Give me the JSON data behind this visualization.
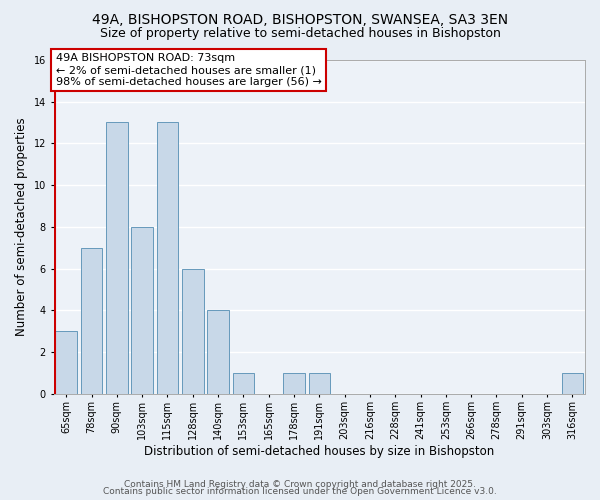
{
  "title": "49A, BISHOPSTON ROAD, BISHOPSTON, SWANSEA, SA3 3EN",
  "subtitle": "Size of property relative to semi-detached houses in Bishopston",
  "xlabel": "Distribution of semi-detached houses by size in Bishopston",
  "ylabel": "Number of semi-detached properties",
  "categories": [
    "65sqm",
    "78sqm",
    "90sqm",
    "103sqm",
    "115sqm",
    "128sqm",
    "140sqm",
    "153sqm",
    "165sqm",
    "178sqm",
    "191sqm",
    "203sqm",
    "216sqm",
    "228sqm",
    "241sqm",
    "253sqm",
    "266sqm",
    "278sqm",
    "291sqm",
    "303sqm",
    "316sqm"
  ],
  "values": [
    3,
    7,
    13,
    8,
    13,
    6,
    4,
    1,
    0,
    1,
    1,
    0,
    0,
    0,
    0,
    0,
    0,
    0,
    0,
    0,
    1
  ],
  "bar_color": "#c8d8e8",
  "bar_edge_color": "#6699bb",
  "highlight_bar_index": 0,
  "highlight_edge_color": "#cc0000",
  "vline_color": "#cc0000",
  "ylim": [
    0,
    16
  ],
  "yticks": [
    0,
    2,
    4,
    6,
    8,
    10,
    12,
    14,
    16
  ],
  "annotation_title": "49A BISHOPSTON ROAD: 73sqm",
  "annotation_line1": "← 2% of semi-detached houses are smaller (1)",
  "annotation_line2": "98% of semi-detached houses are larger (56) →",
  "footer1": "Contains HM Land Registry data © Crown copyright and database right 2025.",
  "footer2": "Contains public sector information licensed under the Open Government Licence v3.0.",
  "background_color": "#e8eef5",
  "plot_background_color": "#edf2f8",
  "grid_color": "#ffffff",
  "title_fontsize": 10,
  "subtitle_fontsize": 9,
  "axis_label_fontsize": 8.5,
  "tick_fontsize": 7,
  "annotation_fontsize": 8,
  "footer_fontsize": 6.5
}
